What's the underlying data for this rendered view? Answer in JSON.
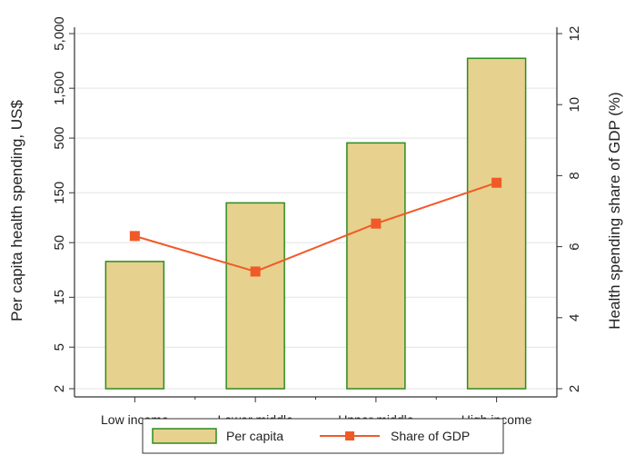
{
  "chart_data": {
    "type": "bar",
    "categories": [
      "Low income",
      "Lower middle",
      "Upper middle",
      "High income"
    ],
    "series": [
      {
        "name": "Per capita",
        "type": "bar",
        "axis": "left",
        "values": [
          33,
          120,
          450,
          2900
        ],
        "color": "#e6d18e",
        "edge_color": "#2e8b1e"
      },
      {
        "name": "Share of GDP",
        "type": "line",
        "axis": "right",
        "values": [
          6.3,
          5.3,
          6.65,
          7.8
        ],
        "color": "#f05a28"
      }
    ],
    "ylabel": "Per capita health spending, US$",
    "y2label": "Health spending share of GDP (%)",
    "yscale": "log",
    "ylim": [
      2,
      5000
    ],
    "yticks": [
      "2",
      "5",
      "15",
      "50",
      "150",
      "500",
      "1,500",
      "5,000"
    ],
    "yticks_values": [
      2,
      5,
      15,
      50,
      150,
      500,
      1500,
      5000
    ],
    "y2lim": [
      2,
      12
    ],
    "y2ticks": [
      "2",
      "4",
      "6",
      "8",
      "10",
      "12"
    ],
    "y2ticks_values": [
      2,
      4,
      6,
      8,
      10,
      12
    ],
    "grid": true,
    "legend_position": "bottom"
  }
}
